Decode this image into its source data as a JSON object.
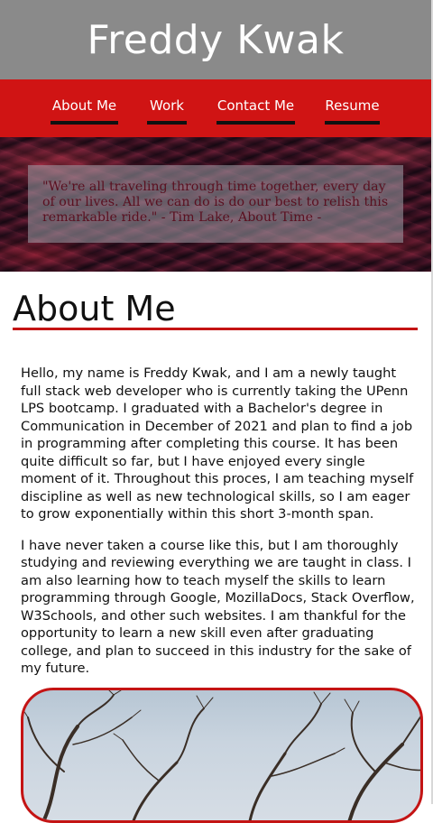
{
  "header": {
    "title": "Freddy Kwak"
  },
  "nav": {
    "items": [
      {
        "label": "About Me"
      },
      {
        "label": "Work"
      },
      {
        "label": "Contact Me"
      },
      {
        "label": "Resume"
      }
    ]
  },
  "hero": {
    "quote": "\"We're all traveling through time together, every day of our lives. All we can do is do our best to relish this remarkable ride.\" - Tim Lake, About Time -"
  },
  "about": {
    "heading": "About Me",
    "paragraphs": [
      "Hello, my name is Freddy Kwak, and I am a newly taught full stack web developer who is currently taking the UPenn LPS bootcamp. I graduated with a Bachelor's degree in Communication in December of 2021 and plan to find a job in programming after completing this course. It has been quite difficult so far, but I have enjoyed every single moment of it. Throughout this proces, I am teaching myself discipline as well as new technological skills, so I am eager to grow exponentially within this short 3-month span.",
      "I have never taken a course like this, but I am thoroughly studying and reviewing everything we are taught in class. I am also learning how to teach myself the skills to learn programming through Google, MozillaDocs, Stack Overflow, W3Schools, and other such websites. I am thankful for the opportunity to learn a new skill even after graduating college, and plan to succeed in this industry for the sake of my future."
    ]
  },
  "colors": {
    "header_bg": "#8a8a8a",
    "nav_bg": "#d01414",
    "accent_red": "#c41414"
  }
}
